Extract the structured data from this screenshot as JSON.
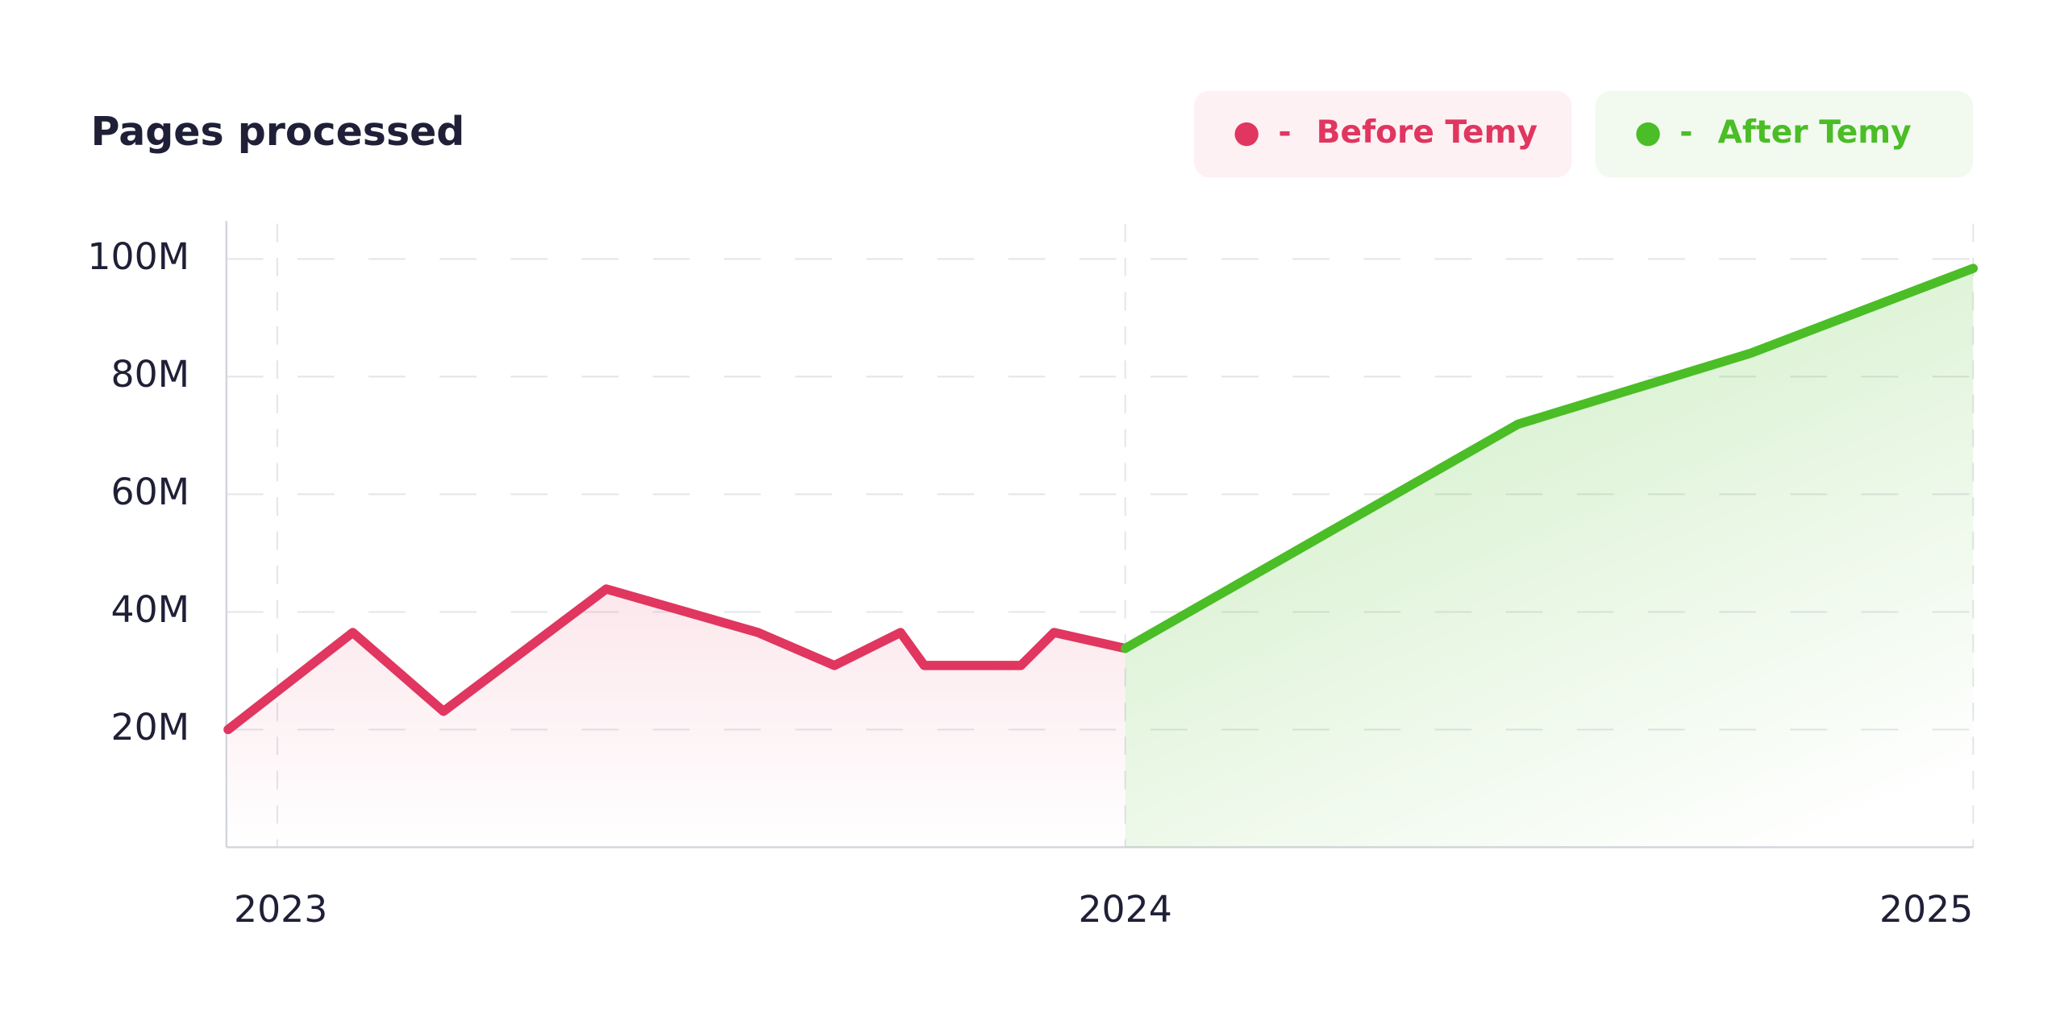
{
  "chart_data": {
    "type": "line",
    "title": "Pages processed",
    "legend_separator": "-",
    "xlim": [
      2022.94,
      2025
    ],
    "xticks": [
      2023,
      2024,
      2025
    ],
    "ylim": [
      0,
      106000000
    ],
    "yticks": [
      {
        "value": 20000000,
        "label": "20M"
      },
      {
        "value": 40000000,
        "label": "40M"
      },
      {
        "value": 60000000,
        "label": "60M"
      },
      {
        "value": 80000000,
        "label": "80M"
      },
      {
        "value": 100000000,
        "label": "100M"
      }
    ],
    "grid": true,
    "legend": "top-right",
    "series": [
      {
        "name": "Before Temy",
        "color": "#e0365f",
        "x": [
          2022.942,
          2023.089,
          2023.196,
          2023.388,
          2023.567,
          2023.657,
          2023.735,
          2023.763,
          2023.877,
          2023.916,
          2024.0
        ],
        "values": [
          20000000,
          36500000,
          23100000,
          43900000,
          36500000,
          30900000,
          36500000,
          30900000,
          30900000,
          36500000,
          33800000
        ]
      },
      {
        "name": "After Temy",
        "color": "#4bbd26",
        "x": [
          2024.0,
          2024.463,
          2024.738,
          2025.0
        ],
        "values": [
          33800000,
          71900000,
          84000000,
          98400000
        ]
      }
    ]
  }
}
